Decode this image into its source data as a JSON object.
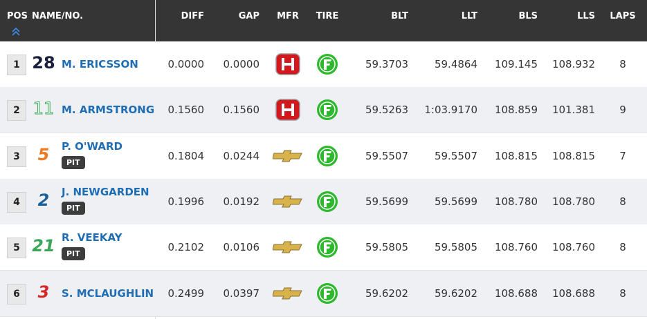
{
  "header": {
    "columns": [
      "POS",
      "NAME/NO.",
      "DIFF",
      "GAP",
      "MFR",
      "TIRE",
      "BLT",
      "LLT",
      "BLS",
      "LLS",
      "LAPS"
    ]
  },
  "table": {
    "rows": [
      {
        "pos": "1",
        "number": "28",
        "name": "M. ERICSSON",
        "diff": "0.0000",
        "gap": "0.0000",
        "blt": "59.3703",
        "llt": "59.4864",
        "bls": "109.145",
        "lls": "108.932",
        "laps": "8"
      },
      {
        "pos": "2",
        "number": "11",
        "name": "M. ARMSTRONG",
        "diff": "0.1560",
        "gap": "0.1560",
        "blt": "59.5263",
        "llt": "1:03.9170",
        "bls": "108.859",
        "lls": "101.381",
        "laps": "9"
      },
      {
        "pos": "3",
        "number": "5",
        "name": "P. O'WARD",
        "pit": "PIT",
        "diff": "0.1804",
        "gap": "0.0244",
        "blt": "59.5507",
        "llt": "59.5507",
        "bls": "108.815",
        "lls": "108.815",
        "laps": "7"
      },
      {
        "pos": "4",
        "number": "2",
        "name": "J. NEWGARDEN",
        "pit": "PIT",
        "diff": "0.1996",
        "gap": "0.0192",
        "blt": "59.5699",
        "llt": "59.5699",
        "bls": "108.780",
        "lls": "108.780",
        "laps": "8"
      },
      {
        "pos": "5",
        "number": "21",
        "name": "R. VEEKAY",
        "pit": "PIT",
        "diff": "0.2102",
        "gap": "0.0106",
        "blt": "59.5805",
        "llt": "59.5805",
        "bls": "108.760",
        "lls": "108.760",
        "laps": "8"
      },
      {
        "pos": "6",
        "number": "3",
        "name": "S. MCLAUGHLIN",
        "diff": "0.2499",
        "gap": "0.0397",
        "blt": "59.6202",
        "llt": "59.6202",
        "bls": "108.688",
        "lls": "108.688",
        "laps": "8"
      }
    ]
  }
}
